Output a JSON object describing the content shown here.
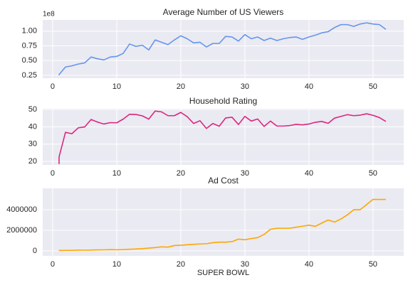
{
  "chart_data": [
    {
      "type": "line",
      "title": "Average Number of US Viewers",
      "y_offset_label": "1e8",
      "x": [
        1,
        1,
        2,
        3,
        4,
        5,
        6,
        7,
        8,
        9,
        10,
        11,
        12,
        13,
        14,
        15,
        16,
        17,
        18,
        19,
        20,
        21,
        22,
        23,
        24,
        25,
        26,
        27,
        28,
        29,
        30,
        31,
        32,
        33,
        34,
        35,
        36,
        37,
        38,
        39,
        40,
        41,
        42,
        43,
        44,
        45,
        46,
        47,
        48,
        49,
        50,
        51,
        52
      ],
      "series": [
        {
          "color": "#6495ed",
          "values": [
            0.25,
            0.26,
            0.39,
            0.41,
            0.44,
            0.46,
            0.56,
            0.53,
            0.51,
            0.56,
            0.57,
            0.62,
            0.78,
            0.74,
            0.76,
            0.68,
            0.85,
            0.81,
            0.77,
            0.85,
            0.92,
            0.87,
            0.8,
            0.81,
            0.73,
            0.79,
            0.79,
            0.91,
            0.9,
            0.83,
            0.94,
            0.87,
            0.9,
            0.84,
            0.88,
            0.84,
            0.87,
            0.89,
            0.9,
            0.86,
            0.9,
            0.93,
            0.97,
            0.99,
            1.06,
            1.11,
            1.11,
            1.08,
            1.12,
            1.14,
            1.12,
            1.11,
            1.03
          ]
        }
      ],
      "xlim": [
        -1.55,
        54.8
      ],
      "xticks": [
        0,
        10,
        20,
        30,
        40,
        50
      ],
      "ylim": [
        0.2,
        1.19
      ],
      "yticks": [
        {
          "value": 0.25,
          "label": "0.25"
        },
        {
          "value": 0.5,
          "label": "0.50"
        },
        {
          "value": 0.75,
          "label": "0.75"
        },
        {
          "value": 1.0,
          "label": "1.00"
        }
      ],
      "grid": true
    },
    {
      "type": "line",
      "title": "Household Rating",
      "x": [
        1,
        1,
        2,
        3,
        4,
        5,
        6,
        7,
        8,
        9,
        10,
        11,
        12,
        13,
        14,
        15,
        16,
        17,
        18,
        19,
        20,
        21,
        22,
        23,
        24,
        25,
        26,
        27,
        28,
        29,
        30,
        31,
        32,
        33,
        34,
        35,
        36,
        37,
        38,
        39,
        40,
        41,
        42,
        43,
        44,
        45,
        46,
        47,
        48,
        49,
        50,
        51,
        52
      ],
      "series": [
        {
          "color": "#dc267f",
          "values": [
            18.5,
            22.6,
            36.8,
            36.0,
            39.4,
            39.9,
            44.2,
            42.7,
            41.6,
            42.4,
            42.3,
            44.4,
            47.2,
            47.1,
            46.3,
            44.4,
            49.1,
            48.6,
            46.4,
            46.4,
            48.3,
            45.8,
            41.9,
            43.5,
            39.0,
            41.9,
            40.3,
            45.1,
            45.5,
            41.3,
            46.0,
            43.3,
            44.5,
            40.2,
            43.3,
            40.4,
            40.4,
            40.7,
            41.4,
            41.1,
            41.6,
            42.6,
            43.1,
            42.0,
            45.0,
            46.0,
            47.0,
            46.4,
            46.7,
            47.5,
            46.6,
            45.3,
            43.1
          ]
        }
      ],
      "xlim": [
        -1.55,
        54.8
      ],
      "xticks": [
        0,
        10,
        20,
        30,
        40,
        50
      ],
      "ylim": [
        18,
        50.4
      ],
      "yticks": [
        20,
        30,
        40,
        50
      ],
      "grid": true
    },
    {
      "type": "line",
      "title": "Ad Cost",
      "xlabel": "SUPER BOWL",
      "x": [
        1,
        1,
        2,
        3,
        4,
        5,
        6,
        7,
        8,
        9,
        10,
        11,
        12,
        13,
        14,
        15,
        16,
        17,
        18,
        19,
        20,
        21,
        22,
        23,
        24,
        25,
        26,
        27,
        28,
        29,
        30,
        31,
        32,
        33,
        34,
        35,
        36,
        37,
        38,
        39,
        40,
        41,
        42,
        43,
        44,
        45,
        46,
        47,
        48,
        49,
        50,
        51,
        52
      ],
      "series": [
        {
          "color": "#ffa500",
          "values": [
            37500,
            42500,
            54500,
            55000,
            78200,
            72400,
            86100,
            103500,
            107000,
            125000,
            110000,
            125000,
            162000,
            185000,
            222000,
            275000,
            324300,
            400000,
            368200,
            525000,
            550000,
            600000,
            645000,
            675000,
            700400,
            800000,
            850000,
            850000,
            900000,
            1150000,
            1085000,
            1200000,
            1291100,
            1600000,
            2100000,
            2200000,
            2200000,
            2200000,
            2302200,
            2400000,
            2500000,
            2385365,
            2699963,
            3000000,
            2800000,
            3100000,
            3500000,
            4000000,
            4000000,
            4500000,
            5000000,
            5000000,
            5000000
          ]
        }
      ],
      "xlim": [
        -1.55,
        54.8
      ],
      "xticks": [
        0,
        10,
        20,
        30,
        40,
        50
      ],
      "ylim": [
        -480000,
        6070000
      ],
      "yticks": [
        0,
        2000000,
        4000000
      ],
      "grid": true
    }
  ]
}
